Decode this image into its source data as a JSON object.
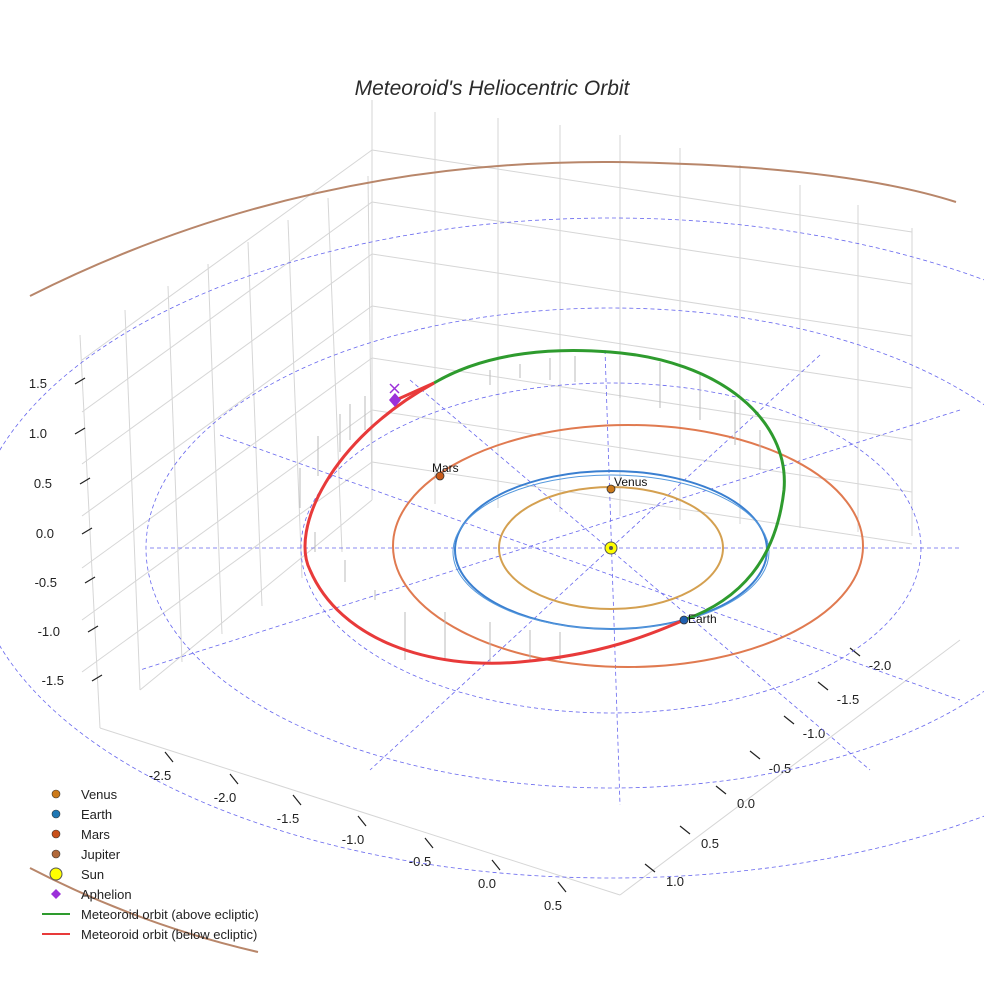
{
  "chart_data": {
    "type": "scatter3d",
    "title": "Meteoroid's Heliocentric Orbit",
    "axes": {
      "x": {
        "label": "",
        "ticks": [
          -2.5,
          -2.0,
          -1.5,
          -1.0,
          -0.5,
          0.0,
          0.5
        ]
      },
      "y": {
        "label": "",
        "ticks": [
          -2.0,
          -1.5,
          -1.0,
          -0.5,
          0.0,
          0.5,
          1.0
        ]
      },
      "z": {
        "label": "",
        "ticks": [
          1.5,
          1.0,
          0.5,
          0.0,
          -0.5,
          -1.0,
          -1.5
        ]
      }
    },
    "reference_circles_au": [
      1.0,
      2.0,
      3.0
    ],
    "planets": [
      {
        "name": "Venus",
        "label": "Venus",
        "orbit_radius_au": 0.72,
        "color": "#d4a050",
        "marker_color": "#cc7a1a",
        "x": 0.0,
        "y": 0.72
      },
      {
        "name": "Earth",
        "label": "Earth",
        "orbit_radius_au": 1.0,
        "color": "#3a7fd0",
        "marker_color": "#1f5fb0",
        "x": 0.5,
        "y": -0.87
      },
      {
        "name": "Mars",
        "label": "Mars",
        "orbit_radius_au": 1.52,
        "color": "#e07a50",
        "marker_color": "#c85a1a",
        "x": -1.2,
        "y": 0.95
      },
      {
        "name": "Jupiter",
        "label": "",
        "orbit_radius_au": 5.2,
        "color": "#b8866a",
        "marker_color": "#b0683a"
      }
    ],
    "sun": {
      "name": "Sun",
      "color": "#ffff00"
    },
    "aphelion": {
      "name": "Aphelion",
      "color": "#9b30d9",
      "position_au": [
        -1.6,
        1.75,
        1.2
      ]
    },
    "meteoroid": {
      "above_label": "Meteoroid orbit (above ecliptic)",
      "below_label": "Meteoroid orbit (below ecliptic)",
      "above_color": "#2e9b2e",
      "below_color": "#e83a3a"
    },
    "legend": [
      {
        "label": "Venus",
        "kind": "dot",
        "color": "#cc7a1a"
      },
      {
        "label": "Earth",
        "kind": "dot",
        "color": "#1f77b4"
      },
      {
        "label": "Mars",
        "kind": "dot",
        "color": "#c8501a"
      },
      {
        "label": "Jupiter",
        "kind": "dot",
        "color": "#b0683a"
      },
      {
        "label": "Sun",
        "kind": "sun",
        "color": "#ffff00"
      },
      {
        "label": "Aphelion",
        "kind": "diamond",
        "color": "#9b30d9"
      },
      {
        "label": "Meteoroid orbit (above ecliptic)",
        "kind": "line",
        "color": "#2e9b2e"
      },
      {
        "label": "Meteoroid orbit (below ecliptic)",
        "kind": "line",
        "color": "#e83a3a"
      }
    ]
  }
}
